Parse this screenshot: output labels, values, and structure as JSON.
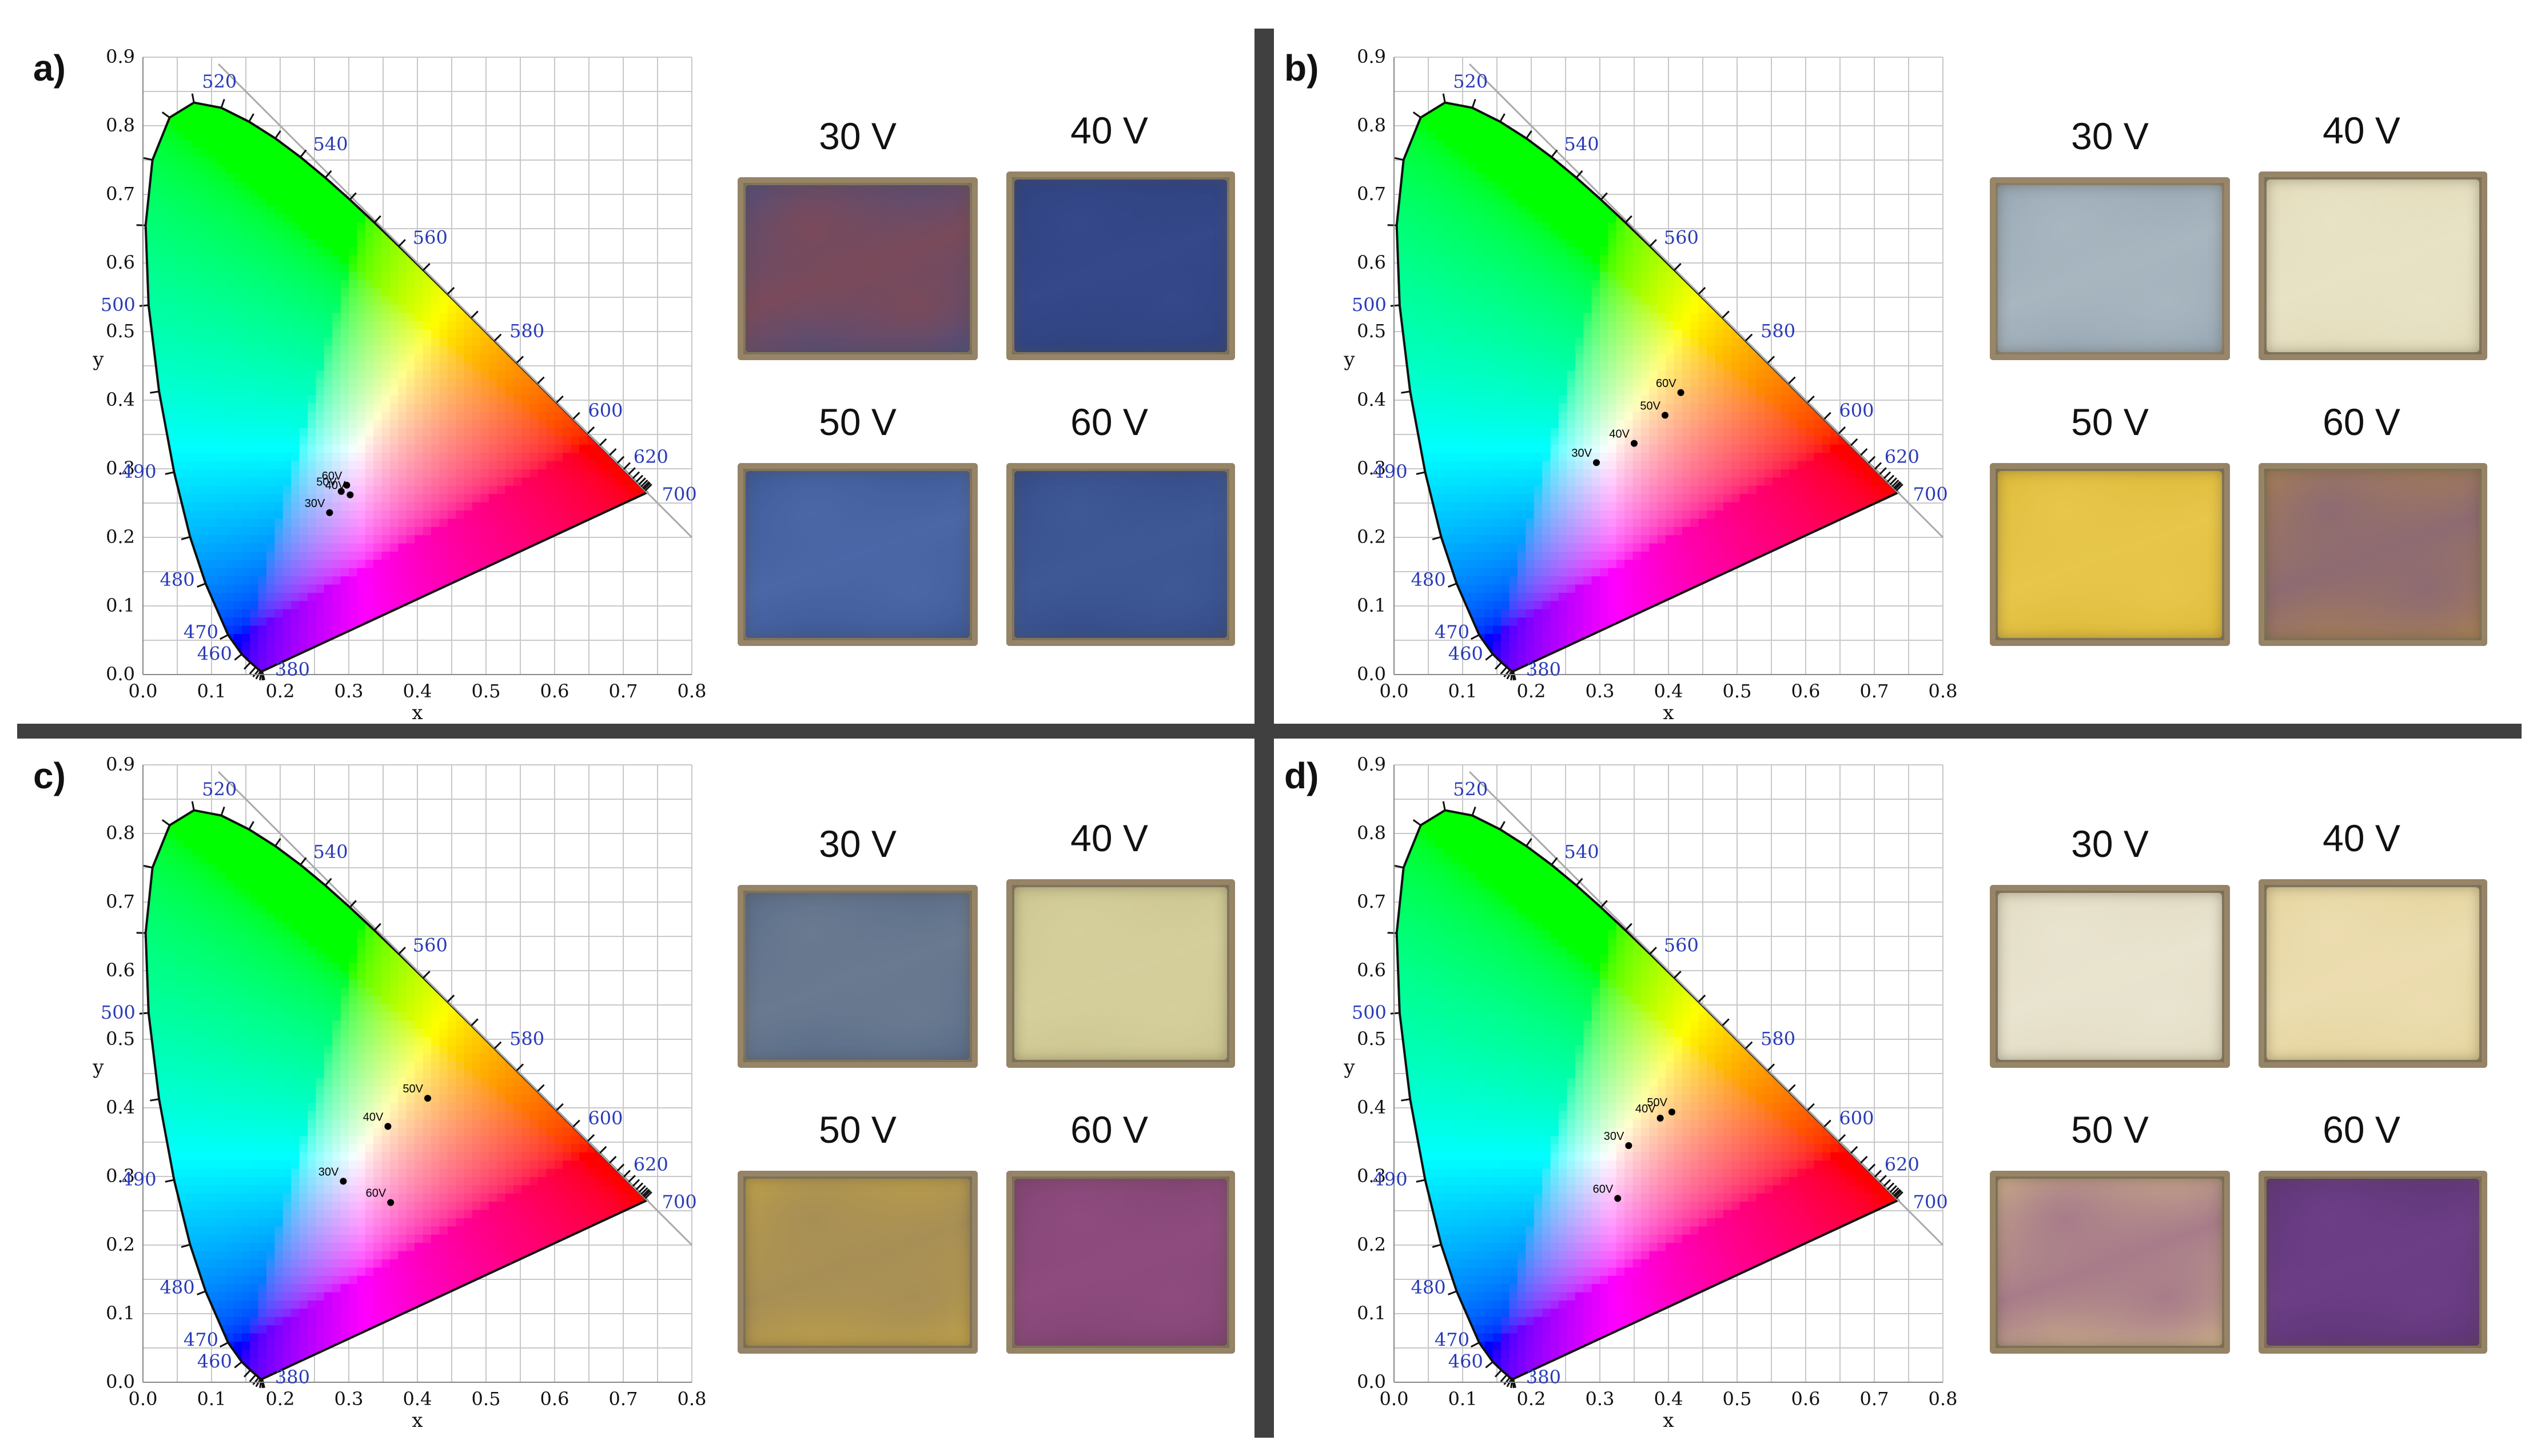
{
  "panels": [
    {
      "id": "a",
      "label": "a)",
      "chart_data": {
        "type": "scatter",
        "title": "",
        "xlabel": "x",
        "ylabel": "y",
        "xlim": [
          0.0,
          0.8
        ],
        "ylim": [
          0.0,
          0.9
        ],
        "grid": true,
        "x_ticks": [
          "0.0",
          "0.1",
          "0.2",
          "0.3",
          "0.4",
          "0.5",
          "0.6",
          "0.7",
          "0.8"
        ],
        "y_ticks": [
          "0.0",
          "0.1",
          "0.2",
          "0.3",
          "0.4",
          "0.5",
          "0.6",
          "0.7",
          "0.8",
          "0.9"
        ],
        "wavelength_labels": [
          "380",
          "460",
          "470",
          "480",
          "490",
          "500",
          "520",
          "540",
          "560",
          "580",
          "600",
          "620",
          "700"
        ],
        "points": [
          {
            "label": "30V",
            "x": 0.272,
            "y": 0.236
          },
          {
            "label": "50V",
            "x": 0.289,
            "y": 0.267
          },
          {
            "label": "60V",
            "x": 0.297,
            "y": 0.276
          },
          {
            "label": "40V",
            "x": 0.302,
            "y": 0.262
          }
        ]
      },
      "swatches": [
        {
          "label": "30 V",
          "base": "#3d4f8a",
          "accent": "#7a4a5a",
          "frame": "#8f8268"
        },
        {
          "label": "40 V",
          "base": "#2c3f78",
          "accent": "#34488a",
          "frame": "#8f8268"
        },
        {
          "label": "50 V",
          "base": "#34508e",
          "accent": "#4b67a6",
          "frame": "#8f8268"
        },
        {
          "label": "60 V",
          "base": "#2f4580",
          "accent": "#3e5896",
          "frame": "#8f8268"
        }
      ]
    },
    {
      "id": "b",
      "label": "b)",
      "chart_data": {
        "type": "scatter",
        "title": "",
        "xlabel": "x",
        "ylabel": "y",
        "xlim": [
          0.0,
          0.8
        ],
        "ylim": [
          0.0,
          0.9
        ],
        "grid": true,
        "x_ticks": [
          "0.0",
          "0.1",
          "0.2",
          "0.3",
          "0.4",
          "0.5",
          "0.6",
          "0.7",
          "0.8"
        ],
        "y_ticks": [
          "0.0",
          "0.1",
          "0.2",
          "0.3",
          "0.4",
          "0.5",
          "0.6",
          "0.7",
          "0.8",
          "0.9"
        ],
        "wavelength_labels": [
          "380",
          "460",
          "470",
          "480",
          "490",
          "500",
          "520",
          "540",
          "560",
          "580",
          "600",
          "620",
          "700"
        ],
        "points": [
          {
            "label": "30V",
            "x": 0.295,
            "y": 0.309
          },
          {
            "label": "40V",
            "x": 0.35,
            "y": 0.337
          },
          {
            "label": "50V",
            "x": 0.395,
            "y": 0.378
          },
          {
            "label": "60V",
            "x": 0.418,
            "y": 0.411
          }
        ]
      },
      "swatches": [
        {
          "label": "30 V",
          "base": "#8e9fae",
          "accent": "#a8b6c0",
          "frame": "#9a8f78"
        },
        {
          "label": "40 V",
          "base": "#ddd7b4",
          "accent": "#e9e3c6",
          "frame": "#8f8268"
        },
        {
          "label": "50 V",
          "base": "#d9b431",
          "accent": "#e7c64a",
          "frame": "#8c7e62"
        },
        {
          "label": "60 V",
          "base": "#b28848",
          "accent": "#8e6b72",
          "frame": "#8c7e62"
        }
      ]
    },
    {
      "id": "c",
      "label": "c)",
      "chart_data": {
        "type": "scatter",
        "title": "",
        "xlabel": "x",
        "ylabel": "y",
        "xlim": [
          0.0,
          0.8
        ],
        "ylim": [
          0.0,
          0.9
        ],
        "grid": true,
        "x_ticks": [
          "0.0",
          "0.1",
          "0.2",
          "0.3",
          "0.4",
          "0.5",
          "0.6",
          "0.7",
          "0.8"
        ],
        "y_ticks": [
          "0.0",
          "0.1",
          "0.2",
          "0.3",
          "0.4",
          "0.5",
          "0.6",
          "0.7",
          "0.8",
          "0.9"
        ],
        "wavelength_labels": [
          "380",
          "460",
          "470",
          "480",
          "490",
          "500",
          "520",
          "540",
          "560",
          "580",
          "600",
          "620",
          "700"
        ],
        "points": [
          {
            "label": "30V",
            "x": 0.292,
            "y": 0.293
          },
          {
            "label": "40V",
            "x": 0.357,
            "y": 0.373
          },
          {
            "label": "50V",
            "x": 0.415,
            "y": 0.414
          },
          {
            "label": "60V",
            "x": 0.361,
            "y": 0.262
          }
        ]
      },
      "swatches": [
        {
          "label": "30 V",
          "base": "#4f6385",
          "accent": "#6a7a90",
          "frame": "#8f8268"
        },
        {
          "label": "40 V",
          "base": "#c7c08a",
          "accent": "#d5cf9c",
          "frame": "#8f8268"
        },
        {
          "label": "50 V",
          "base": "#c9a943",
          "accent": "#a78e55",
          "frame": "#8c7e62"
        },
        {
          "label": "60 V",
          "base": "#7a3f6e",
          "accent": "#8e4c7e",
          "frame": "#8c7e62"
        }
      ]
    },
    {
      "id": "d",
      "label": "d)",
      "chart_data": {
        "type": "scatter",
        "title": "",
        "xlabel": "x",
        "ylabel": "y",
        "xlim": [
          0.0,
          0.8
        ],
        "ylim": [
          0.0,
          0.9
        ],
        "grid": true,
        "x_ticks": [
          "0.0",
          "0.1",
          "0.2",
          "0.3",
          "0.4",
          "0.5",
          "0.6",
          "0.7",
          "0.8"
        ],
        "y_ticks": [
          "0.0",
          "0.1",
          "0.2",
          "0.3",
          "0.4",
          "0.5",
          "0.6",
          "0.7",
          "0.8",
          "0.9"
        ],
        "wavelength_labels": [
          "380",
          "460",
          "470",
          "480",
          "490",
          "500",
          "520",
          "540",
          "560",
          "580",
          "600",
          "620",
          "700"
        ],
        "points": [
          {
            "label": "30V",
            "x": 0.342,
            "y": 0.345
          },
          {
            "label": "40V",
            "x": 0.388,
            "y": 0.385
          },
          {
            "label": "50V",
            "x": 0.405,
            "y": 0.394
          },
          {
            "label": "60V",
            "x": 0.326,
            "y": 0.268
          }
        ]
      },
      "swatches": [
        {
          "label": "30 V",
          "base": "#ddd6bd",
          "accent": "#e9e4cf",
          "frame": "#8f8268"
        },
        {
          "label": "40 V",
          "base": "#e0cf93",
          "accent": "#ecddb0",
          "frame": "#8f8268"
        },
        {
          "label": "50 V",
          "base": "#d9c488",
          "accent": "#a87c8a",
          "frame": "#8c7e62"
        },
        {
          "label": "60 V",
          "base": "#57306e",
          "accent": "#6c3e86",
          "frame": "#8c7e62"
        }
      ]
    }
  ]
}
